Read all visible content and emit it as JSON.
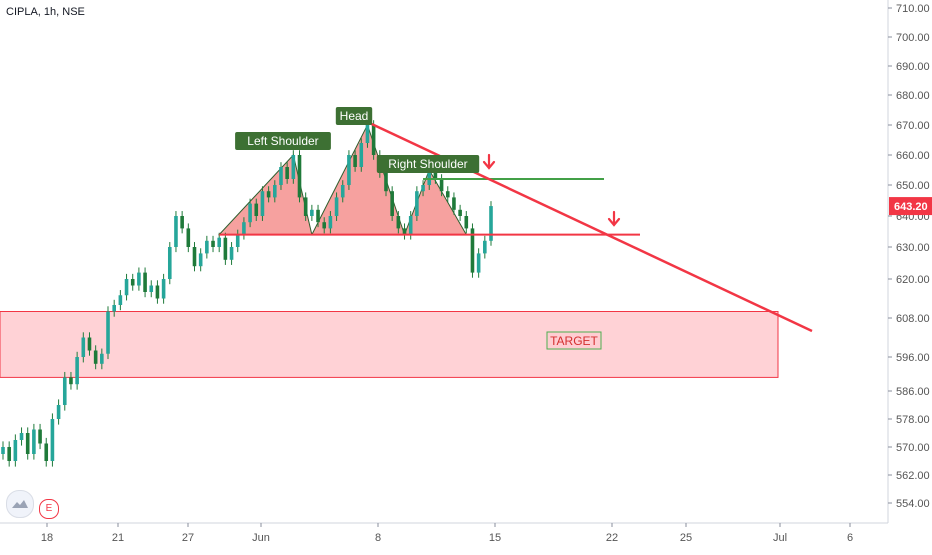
{
  "header": {
    "symbol": "CIPLA",
    "interval": "1h",
    "exchange": "NSE",
    "title": "CIPLA, 1h, NSE"
  },
  "badges": {
    "events": "E"
  },
  "colors": {
    "up": "#26a69a",
    "down": "#ef5350",
    "candle": "#1f7a3a",
    "pattern_fill": "#ef5350",
    "neckline": "#f23645",
    "resistance": "#43a047",
    "target_fill": "#ffcdd2",
    "target_border": "#f23645",
    "label_bg": "#3d7033",
    "price_badge": "#f23645",
    "axis_text": "#555555"
  },
  "chart_data": {
    "type": "candlestick",
    "title": "CIPLA, 1h, NSE",
    "x_axis": {
      "ticks": [
        "18",
        "21",
        "27",
        "Jun",
        "8",
        "15",
        "22",
        "25",
        "Jul",
        "6"
      ]
    },
    "y_axis": {
      "position": "right",
      "ticks": [
        "710.00",
        "700.00",
        "690.00",
        "680.00",
        "670.00",
        "660.00",
        "650.00",
        "640.00",
        "630.00",
        "620.00",
        "608.00",
        "596.00",
        "586.00",
        "578.00",
        "570.00",
        "562.00",
        "554.00"
      ]
    },
    "last_price": "643.20",
    "series": [
      {
        "name": "price",
        "points": [
          [
            568,
            570
          ],
          [
            570,
            566
          ],
          [
            566,
            572
          ],
          [
            572,
            574
          ],
          [
            574,
            568
          ],
          [
            568,
            575
          ],
          [
            575,
            571
          ],
          [
            571,
            566
          ],
          [
            566,
            578
          ],
          [
            578,
            582
          ],
          [
            582,
            590
          ],
          [
            590,
            588
          ],
          [
            588,
            596
          ],
          [
            596,
            602
          ],
          [
            602,
            598
          ],
          [
            598,
            594
          ],
          [
            594,
            597
          ],
          [
            597,
            610
          ],
          [
            610,
            612
          ],
          [
            612,
            615
          ],
          [
            615,
            620
          ],
          [
            620,
            618
          ],
          [
            618,
            622
          ],
          [
            622,
            616
          ],
          [
            616,
            618
          ],
          [
            618,
            614
          ],
          [
            614,
            620
          ],
          [
            620,
            630
          ],
          [
            630,
            640
          ],
          [
            640,
            636
          ],
          [
            636,
            630
          ],
          [
            630,
            624
          ],
          [
            624,
            628
          ],
          [
            628,
            632
          ],
          [
            632,
            630
          ],
          [
            630,
            633
          ],
          [
            633,
            626
          ],
          [
            626,
            630
          ],
          [
            630,
            634
          ],
          [
            634,
            638
          ],
          [
            638,
            644
          ],
          [
            644,
            640
          ],
          [
            640,
            648
          ],
          [
            648,
            646
          ],
          [
            646,
            650
          ],
          [
            650,
            656
          ],
          [
            656,
            652
          ],
          [
            652,
            660
          ],
          [
            660,
            646
          ],
          [
            646,
            640
          ],
          [
            640,
            642
          ],
          [
            642,
            638
          ],
          [
            638,
            636
          ],
          [
            636,
            640
          ],
          [
            640,
            646
          ],
          [
            646,
            650
          ],
          [
            650,
            660
          ],
          [
            660,
            656
          ],
          [
            656,
            664
          ],
          [
            664,
            670
          ],
          [
            670,
            660
          ],
          [
            660,
            654
          ],
          [
            654,
            648
          ],
          [
            648,
            640
          ],
          [
            640,
            636
          ],
          [
            636,
            634
          ],
          [
            634,
            640
          ],
          [
            640,
            648
          ],
          [
            648,
            650
          ],
          [
            650,
            655
          ],
          [
            655,
            652
          ],
          [
            652,
            648
          ],
          [
            648,
            646
          ],
          [
            646,
            642
          ],
          [
            642,
            640
          ],
          [
            640,
            636
          ],
          [
            636,
            622
          ],
          [
            622,
            628
          ],
          [
            628,
            632
          ],
          [
            632,
            643.2
          ]
        ]
      }
    ],
    "annotations": {
      "left_shoulder": "Left Shoulder",
      "head": "Head",
      "right_shoulder": "Right Shoulder",
      "target": "TARGET"
    },
    "levels": {
      "neckline": 634,
      "resistance": 652,
      "target_zone": [
        590,
        610
      ]
    },
    "trendline": {
      "from_price": 671,
      "to_price": 604
    }
  }
}
